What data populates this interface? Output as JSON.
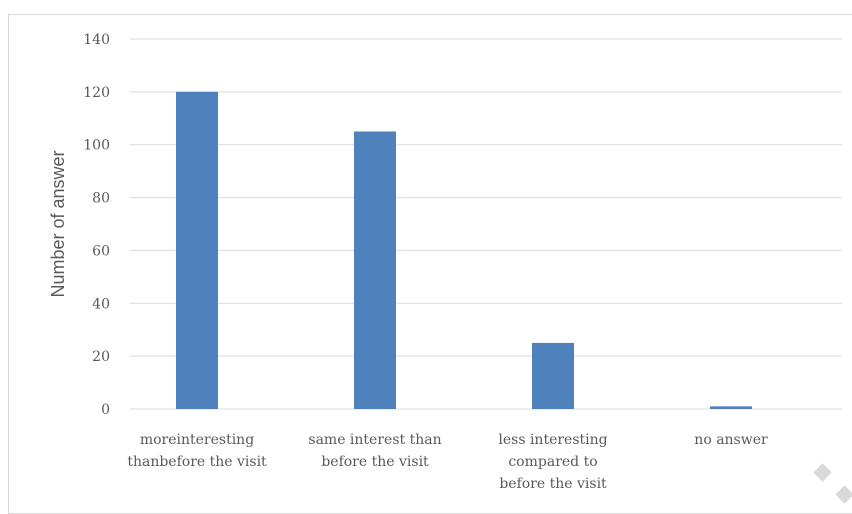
{
  "chart_data": {
    "type": "bar",
    "title": "",
    "xlabel": "",
    "ylabel": "Number of answer",
    "ylim": [
      0,
      140
    ],
    "yticks": [
      0,
      20,
      40,
      60,
      80,
      100,
      120,
      140
    ],
    "grid": true,
    "legend": "none",
    "categories": [
      [
        "moreinteresting",
        "thanbefore the visit"
      ],
      [
        "same interest than",
        "before the visit"
      ],
      [
        "less interesting",
        "compared to",
        "before the visit"
      ],
      [
        "no answer"
      ]
    ],
    "values": [
      120,
      105,
      25,
      1
    ],
    "colors": {
      "bar": "#4f81bd",
      "grid": "#d9d9d9",
      "text": "#595959",
      "decor": "#d9d9d9"
    }
  }
}
